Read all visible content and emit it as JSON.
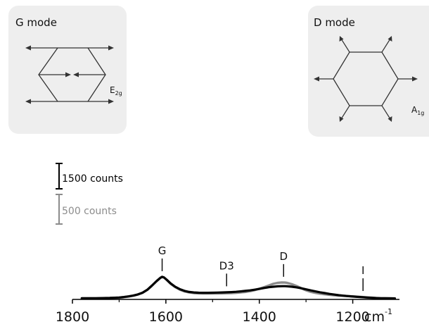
{
  "chart_data": {
    "type": "line",
    "xlim": [
      1800,
      1100
    ],
    "x_reversed": true,
    "x_ticks": [
      1800,
      1600,
      1400,
      1200
    ],
    "x_unit": "cm",
    "x_unit_sup": "-1",
    "series": [
      {
        "color": "#000000",
        "points": [
          [
            1780,
            3
          ],
          [
            1750,
            4
          ],
          [
            1720,
            6
          ],
          [
            1700,
            9
          ],
          [
            1690,
            13
          ],
          [
            1680,
            18
          ],
          [
            1670,
            24
          ],
          [
            1660,
            33
          ],
          [
            1650,
            46
          ],
          [
            1640,
            68
          ],
          [
            1630,
            100
          ],
          [
            1620,
            135
          ],
          [
            1612,
            160
          ],
          [
            1608,
            168
          ],
          [
            1604,
            163
          ],
          [
            1598,
            145
          ],
          [
            1590,
            118
          ],
          [
            1580,
            92
          ],
          [
            1570,
            73
          ],
          [
            1560,
            60
          ],
          [
            1550,
            52
          ],
          [
            1540,
            48
          ],
          [
            1530,
            46
          ],
          [
            1520,
            45.5
          ],
          [
            1510,
            45.5
          ],
          [
            1500,
            46
          ],
          [
            1490,
            47
          ],
          [
            1480,
            48
          ],
          [
            1470,
            49
          ],
          [
            1460,
            51
          ],
          [
            1450,
            53
          ],
          [
            1440,
            56
          ],
          [
            1430,
            60
          ],
          [
            1420,
            64
          ],
          [
            1410,
            69
          ],
          [
            1400,
            75
          ],
          [
            1390,
            82
          ],
          [
            1380,
            88
          ],
          [
            1370,
            92
          ],
          [
            1360,
            95
          ],
          [
            1350,
            96
          ],
          [
            1345,
            96
          ],
          [
            1340,
            95
          ],
          [
            1330,
            92
          ],
          [
            1320,
            87
          ],
          [
            1310,
            80
          ],
          [
            1300,
            72
          ],
          [
            1290,
            64
          ],
          [
            1280,
            56
          ],
          [
            1270,
            49
          ],
          [
            1260,
            43
          ],
          [
            1250,
            37
          ],
          [
            1240,
            32
          ],
          [
            1230,
            27
          ],
          [
            1220,
            23
          ],
          [
            1210,
            20
          ],
          [
            1200,
            17
          ],
          [
            1190,
            14
          ],
          [
            1180,
            12
          ],
          [
            1170,
            9
          ],
          [
            1160,
            7
          ],
          [
            1150,
            5
          ],
          [
            1140,
            4
          ],
          [
            1130,
            3
          ],
          [
            1120,
            2.5
          ],
          [
            1110,
            2
          ]
        ]
      },
      {
        "color": "#8c8c8c",
        "points": [
          [
            1780,
            2
          ],
          [
            1750,
            3
          ],
          [
            1720,
            5
          ],
          [
            1700,
            8
          ],
          [
            1690,
            12
          ],
          [
            1680,
            17
          ],
          [
            1670,
            23
          ],
          [
            1660,
            32
          ],
          [
            1650,
            45
          ],
          [
            1640,
            67
          ],
          [
            1630,
            99
          ],
          [
            1620,
            134
          ],
          [
            1612,
            159
          ],
          [
            1608,
            167
          ],
          [
            1604,
            162
          ],
          [
            1598,
            143
          ],
          [
            1590,
            115
          ],
          [
            1580,
            89
          ],
          [
            1570,
            70
          ],
          [
            1560,
            56
          ],
          [
            1550,
            48
          ],
          [
            1540,
            43
          ],
          [
            1530,
            41
          ],
          [
            1520,
            40
          ],
          [
            1510,
            40
          ],
          [
            1500,
            40
          ],
          [
            1490,
            40.5
          ],
          [
            1480,
            41
          ],
          [
            1470,
            42
          ],
          [
            1460,
            43
          ],
          [
            1450,
            45
          ],
          [
            1440,
            48
          ],
          [
            1430,
            52
          ],
          [
            1420,
            58
          ],
          [
            1410,
            66
          ],
          [
            1400,
            76
          ],
          [
            1390,
            88
          ],
          [
            1380,
            101
          ],
          [
            1370,
            114
          ],
          [
            1360,
            122
          ],
          [
            1352,
            125
          ],
          [
            1345,
            124
          ],
          [
            1340,
            121
          ],
          [
            1330,
            111
          ],
          [
            1320,
            97
          ],
          [
            1310,
            80
          ],
          [
            1300,
            65
          ],
          [
            1290,
            53
          ],
          [
            1280,
            45
          ],
          [
            1270,
            39
          ],
          [
            1260,
            34
          ],
          [
            1250,
            30
          ],
          [
            1240,
            27
          ],
          [
            1230,
            24
          ],
          [
            1220,
            22
          ],
          [
            1210,
            20
          ],
          [
            1200,
            18
          ],
          [
            1190,
            15
          ],
          [
            1180,
            13
          ],
          [
            1170,
            10
          ],
          [
            1160,
            8
          ],
          [
            1150,
            6
          ],
          [
            1140,
            4
          ],
          [
            1130,
            3
          ],
          [
            1120,
            2.5
          ],
          [
            1110,
            2
          ]
        ]
      }
    ],
    "peak_labels": [
      {
        "text": "G",
        "x": 1608,
        "y": 168
      },
      {
        "text": "D",
        "x": 1348,
        "y": 125
      },
      {
        "text": "D3",
        "x": 1470,
        "y": 52
      },
      {
        "text": "I",
        "x": 1178,
        "y": 16
      }
    ],
    "scale_bars": [
      {
        "text": "1500 counts",
        "color": "#000000"
      },
      {
        "text": "500 counts",
        "color": "#8c8c8c"
      }
    ]
  },
  "insets": {
    "g_mode": {
      "title": "G mode",
      "symbol": "E",
      "subscript": "2g"
    },
    "d_mode": {
      "title": "D mode",
      "symbol": "A",
      "subscript": "1g"
    }
  }
}
